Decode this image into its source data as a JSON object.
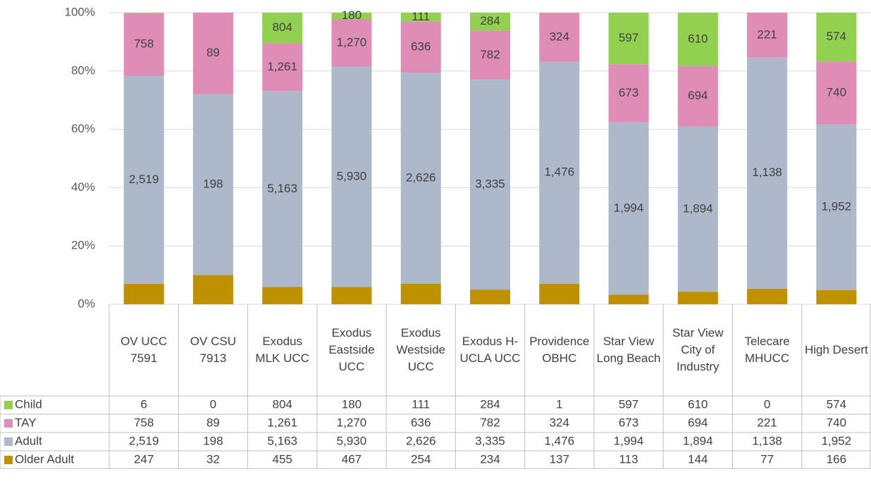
{
  "chart_data": {
    "type": "bar",
    "stacking": "percent",
    "categories": [
      "OV UCC 7591",
      "OV CSU 7913",
      "Exodus MLK UCC",
      "Exodus Eastside UCC",
      "Exodus Westside UCC",
      "Exodus H-UCLA UCC",
      "Providence OBHC",
      "Star View Long Beach",
      "Star View City of Industry",
      "Telecare MHUCC",
      "High Desert"
    ],
    "series": [
      {
        "name": "Child",
        "color": "#92d050",
        "data_labels": true,
        "values": [
          6,
          0,
          804,
          180,
          111,
          284,
          1,
          597,
          610,
          0,
          574
        ],
        "value_labels": [
          "6",
          "0",
          "804",
          "180",
          "111",
          "284",
          "1",
          "597",
          "610",
          "0",
          "574"
        ]
      },
      {
        "name": "TAY",
        "color": "#df8db6",
        "data_labels": true,
        "values": [
          758,
          89,
          1261,
          1270,
          636,
          782,
          324,
          673,
          694,
          221,
          740
        ],
        "value_labels": [
          "758",
          "89",
          "1,261",
          "1,270",
          "636",
          "782",
          "324",
          "673",
          "694",
          "221",
          "740"
        ]
      },
      {
        "name": "Adult",
        "color": "#adb9ca",
        "data_labels": true,
        "values": [
          2519,
          198,
          5163,
          5930,
          2626,
          3335,
          1476,
          1994,
          1894,
          1138,
          1952
        ],
        "value_labels": [
          "2,519",
          "198",
          "5,163",
          "5,930",
          "2,626",
          "3,335",
          "1,476",
          "1,994",
          "1,894",
          "1,138",
          "1,952"
        ]
      },
      {
        "name": "Older Adult",
        "color": "#bf9000",
        "data_labels": false,
        "values": [
          247,
          32,
          455,
          467,
          254,
          234,
          137,
          113,
          144,
          77,
          166
        ],
        "value_labels": [
          "247",
          "32",
          "455",
          "467",
          "254",
          "234",
          "137",
          "113",
          "144",
          "77",
          "166"
        ]
      }
    ],
    "ylim": [
      0,
      100
    ],
    "yticks": [
      {
        "value": 0,
        "label": "0%"
      },
      {
        "value": 20,
        "label": "20%"
      },
      {
        "value": 40,
        "label": "40%"
      },
      {
        "value": 60,
        "label": "60%"
      },
      {
        "value": 80,
        "label": "80%"
      },
      {
        "value": 100,
        "label": "100%"
      }
    ],
    "grid": true
  }
}
